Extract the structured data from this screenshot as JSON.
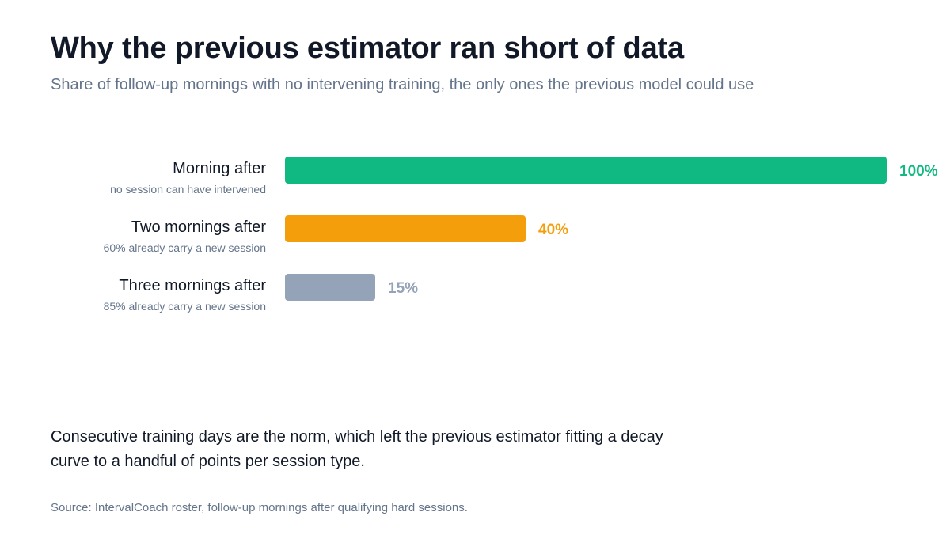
{
  "title": "Why the previous estimator ran short of data",
  "subtitle": "Share of follow-up mornings with no intervening training, the only ones the previous model could use",
  "chart_data": {
    "type": "bar",
    "orientation": "horizontal",
    "categories": [
      "Morning after",
      "Two mornings after",
      "Three mornings after"
    ],
    "notes": [
      "no session can have intervened",
      "60% already carry a new session",
      "85% already carry a new session"
    ],
    "values": [
      100,
      40,
      15
    ],
    "value_labels": [
      "100%",
      "40%",
      "15%"
    ],
    "colors": [
      "#10b981",
      "#f59e0b",
      "#94a3b8"
    ],
    "xlim": [
      0,
      100
    ],
    "grid": false,
    "legend": "none"
  },
  "footnote": "Consecutive training days are the norm, which left the previous estimator fitting a decay curve to a handful of points per session type.",
  "source": "Source: IntervalCoach roster, follow-up mornings after qualifying hard sessions."
}
